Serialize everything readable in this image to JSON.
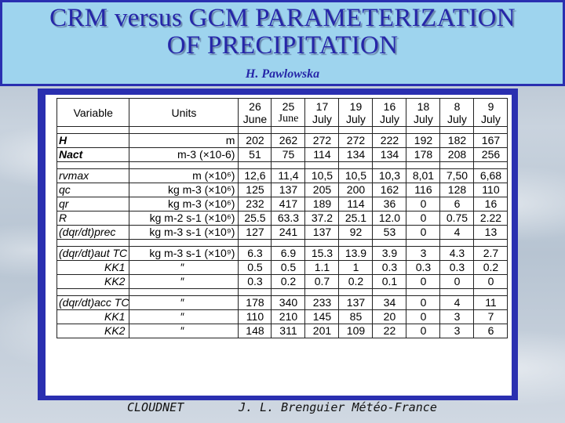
{
  "title_line1": "CRM versus GCM PARAMETERIZATION",
  "title_line2": "OF PRECIPITATION",
  "author": "H. Pawlowska",
  "footer_left": "CLOUDNET",
  "footer_right": "J. L. Brenguier Météo-France",
  "table": {
    "header": {
      "variable": "Variable",
      "units": "Units",
      "dates": [
        {
          "day": "26",
          "month": "June"
        },
        {
          "day": "25",
          "month": "June"
        },
        {
          "day": "17",
          "month": "July"
        },
        {
          "day": "19",
          "month": "July"
        },
        {
          "day": "16",
          "month": "July"
        },
        {
          "day": "18",
          "month": "July"
        },
        {
          "day": "8",
          "month": "July"
        },
        {
          "day": "9",
          "month": "July"
        }
      ]
    },
    "groups": [
      [
        {
          "variable": "H",
          "units": "m",
          "values": [
            "202",
            "262",
            "272",
            "272",
            "222",
            "192",
            "182",
            "167"
          ]
        },
        {
          "variable": "Nact",
          "units": "m-3 (×10-6)",
          "values": [
            "51",
            "75",
            "114",
            "134",
            "134",
            "178",
            "208",
            "256"
          ]
        }
      ],
      [
        {
          "variable": "rvmax",
          "units": "m (×10⁶)",
          "values": [
            "12,6",
            "11,4",
            "10,5",
            "10,5",
            "10,3",
            "8,01",
            "7,50",
            "6,68"
          ]
        },
        {
          "variable": "qc",
          "units": "kg m-3 (×10⁶)",
          "values": [
            "125",
            "137",
            "205",
            "200",
            "162",
            "116",
            "128",
            "110"
          ]
        },
        {
          "variable": "qr",
          "units": "kg m-3 (×10⁶)",
          "values": [
            "232",
            "417",
            "189",
            "114",
            "36",
            "0",
            "6",
            "16"
          ]
        },
        {
          "variable": "R",
          "units": "kg m-2 s-1 (×10⁶)",
          "values": [
            "25.5",
            "63.3",
            "37.2",
            "25.1",
            "12.0",
            "0",
            "0.75",
            "2.22"
          ]
        },
        {
          "variable": "(dqr/dt)prec",
          "units": "kg m-3 s-1 (×10⁹)",
          "values": [
            "127",
            "241",
            "137",
            "92",
            "53",
            "0",
            "4",
            "13"
          ]
        }
      ],
      [
        {
          "variable": "(dqr/dt)aut TC",
          "units": "kg m-3 s-1 (×10⁹)",
          "values": [
            "6.3",
            "6.9",
            "15.3",
            "13.9",
            "3.9",
            "3",
            "4.3",
            "2.7"
          ]
        },
        {
          "variable": "KK1",
          "units": "″",
          "values": [
            "0.5",
            "0.5",
            "1.1",
            "1",
            "0.3",
            "0.3",
            "0.3",
            "0.2"
          ]
        },
        {
          "variable": "KK2",
          "units": "″",
          "values": [
            "0.3",
            "0.2",
            "0.7",
            "0.2",
            "0.1",
            "0",
            "0",
            "0"
          ]
        }
      ],
      [
        {
          "variable": "(dqr/dt)acc TC",
          "units": "″",
          "values": [
            "178",
            "340",
            "233",
            "137",
            "34",
            "0",
            "4",
            "11"
          ]
        },
        {
          "variable": "KK1",
          "units": "″",
          "values": [
            "110",
            "210",
            "145",
            "85",
            "20",
            "0",
            "3",
            "7"
          ]
        },
        {
          "variable": "KK2",
          "units": "″",
          "values": [
            "148",
            "311",
            "201",
            "109",
            "22",
            "0",
            "3",
            "6"
          ]
        }
      ]
    ]
  }
}
